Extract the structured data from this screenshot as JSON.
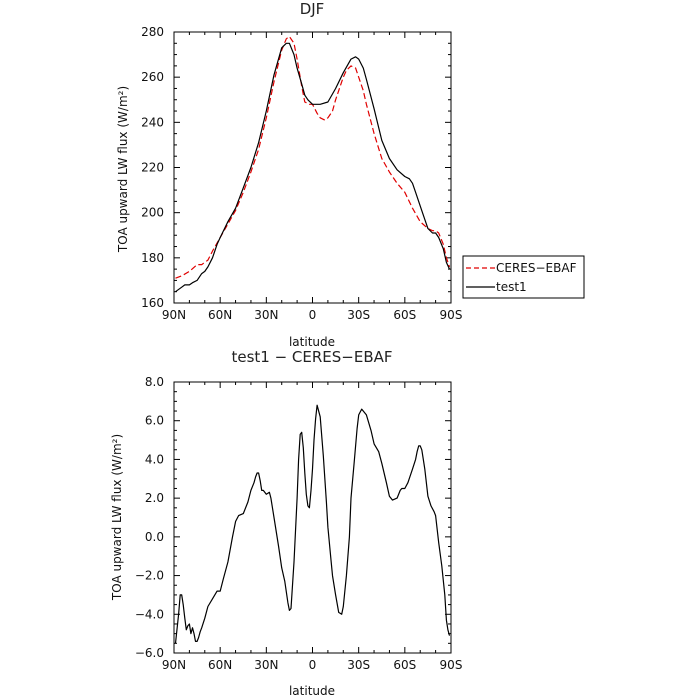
{
  "chart_data": [
    {
      "type": "line",
      "title": "DJF",
      "xlabel": "latitude",
      "ylabel": "TOA upward LW flux (W/m²)",
      "xlim": [
        90,
        -90
      ],
      "ylim": [
        160,
        280
      ],
      "x_ticks": [
        {
          "value": 90,
          "label": "90N"
        },
        {
          "value": 60,
          "label": "60N"
        },
        {
          "value": 30,
          "label": "30N"
        },
        {
          "value": 0,
          "label": "0"
        },
        {
          "value": -30,
          "label": "30S"
        },
        {
          "value": -60,
          "label": "60S"
        },
        {
          "value": -90,
          "label": "90S"
        }
      ],
      "y_ticks": [
        {
          "value": 160,
          "label": "160"
        },
        {
          "value": 180,
          "label": "180"
        },
        {
          "value": 200,
          "label": "200"
        },
        {
          "value": 220,
          "label": "220"
        },
        {
          "value": 240,
          "label": "240"
        },
        {
          "value": 260,
          "label": "260"
        },
        {
          "value": 280,
          "label": "280"
        }
      ],
      "legend": {
        "placement": "right",
        "entries": [
          "CERES−EBAF",
          "test1"
        ]
      },
      "series": [
        {
          "name": "CERES−EBAF",
          "color": "#e00000",
          "dash": true,
          "x": [
            89,
            85,
            80,
            75,
            72,
            68,
            65,
            60,
            55,
            50,
            45,
            40,
            35,
            30,
            25,
            20,
            17,
            15,
            12,
            10,
            7,
            5,
            2,
            0,
            -3,
            -5,
            -8,
            -10,
            -13,
            -15,
            -18,
            -20,
            -22,
            -25,
            -28,
            -30,
            -33,
            -35,
            -40,
            -45,
            -50,
            -55,
            -60,
            -65,
            -70,
            -75,
            -78,
            -80,
            -82,
            -85,
            -87,
            -89
          ],
          "y": [
            171,
            172,
            174,
            177,
            177,
            179,
            183,
            189,
            195,
            201,
            209,
            218,
            228,
            242,
            258,
            272,
            277,
            278,
            275,
            268,
            256,
            249,
            248,
            248,
            244,
            242,
            241,
            242,
            245,
            250,
            256,
            260,
            263,
            265,
            264,
            260,
            254,
            248,
            235,
            224,
            218,
            213,
            209,
            202,
            196,
            193,
            192,
            192,
            191,
            186,
            180,
            176
          ]
        },
        {
          "name": "test1",
          "color": "#000000",
          "dash": false,
          "x": [
            89,
            85,
            83,
            80,
            78,
            75,
            72,
            70,
            68,
            65,
            62,
            60,
            55,
            50,
            45,
            40,
            35,
            30,
            25,
            20,
            17,
            15,
            12,
            10,
            7,
            5,
            3,
            0,
            -5,
            -10,
            -15,
            -20,
            -25,
            -28,
            -30,
            -33,
            -35,
            -40,
            -45,
            -50,
            -55,
            -60,
            -63,
            -65,
            -67,
            -70,
            -73,
            -75,
            -78,
            -80,
            -82,
            -85,
            -87,
            -89
          ],
          "y": [
            165,
            167,
            168,
            168,
            169,
            170,
            173,
            174,
            176,
            180,
            186,
            189,
            196,
            202,
            211,
            220,
            231,
            245,
            261,
            273,
            275,
            275,
            270,
            264,
            257,
            252,
            250,
            248,
            248,
            249,
            255,
            262,
            268,
            269,
            268,
            264,
            259,
            246,
            232,
            224,
            219,
            216,
            215,
            213,
            209,
            203,
            197,
            193,
            191,
            191,
            189,
            184,
            178,
            175
          ]
        }
      ]
    },
    {
      "type": "line",
      "title": "test1 − CERES−EBAF",
      "xlabel": "latitude",
      "ylabel": "TOA upward LW flux (W/m²)",
      "xlim": [
        90,
        -90
      ],
      "ylim": [
        -6,
        8
      ],
      "x_ticks": [
        {
          "value": 90,
          "label": "90N"
        },
        {
          "value": 60,
          "label": "60N"
        },
        {
          "value": 30,
          "label": "30N"
        },
        {
          "value": 0,
          "label": "0"
        },
        {
          "value": -30,
          "label": "30S"
        },
        {
          "value": -60,
          "label": "60S"
        },
        {
          "value": -90,
          "label": "90S"
        }
      ],
      "y_ticks": [
        {
          "value": -6,
          "label": "−6.0"
        },
        {
          "value": -4,
          "label": "−4.0"
        },
        {
          "value": -2,
          "label": "−2.0"
        },
        {
          "value": 0,
          "label": "0.0"
        },
        {
          "value": 2,
          "label": "2.0"
        },
        {
          "value": 4,
          "label": "4.0"
        },
        {
          "value": 6,
          "label": "6.0"
        },
        {
          "value": 8,
          "label": "8.0"
        }
      ],
      "series": [
        {
          "color": "#000000",
          "dash": false,
          "x": [
            89,
            87,
            86,
            85,
            84,
            83,
            82,
            81,
            80,
            79,
            78,
            77,
            76,
            75,
            74,
            73,
            72,
            70,
            68,
            65,
            62,
            60,
            58,
            55,
            52,
            50,
            48,
            45,
            42,
            40,
            38,
            37,
            36,
            35,
            34,
            33,
            32,
            30,
            28,
            27,
            25,
            22,
            20,
            18,
            16,
            15,
            14,
            12,
            10,
            9,
            8,
            7,
            6,
            5,
            4,
            3,
            2,
            1,
            0,
            -1,
            -2,
            -3,
            -5,
            -7,
            -9,
            -10,
            -12,
            -13,
            -15,
            -17,
            -19,
            -20,
            -22,
            -24,
            -25,
            -27,
            -29,
            -30,
            -32,
            -35,
            -38,
            -40,
            -43,
            -45,
            -48,
            -50,
            -52,
            -55,
            -57,
            -58,
            -60,
            -62,
            -65,
            -67,
            -68,
            -69,
            -70,
            -71,
            -72,
            -73,
            -75,
            -77,
            -79,
            -80,
            -82,
            -84,
            -86,
            -87,
            -88,
            -89
          ],
          "y": [
            -5.5,
            -4.0,
            -3.0,
            -3.0,
            -3.5,
            -4.2,
            -4.8,
            -4.6,
            -4.5,
            -5.0,
            -4.7,
            -5.0,
            -5.4,
            -5.4,
            -5.2,
            -4.9,
            -4.7,
            -4.2,
            -3.6,
            -3.2,
            -2.8,
            -2.8,
            -2.2,
            -1.3,
            0.0,
            0.8,
            1.1,
            1.2,
            1.8,
            2.4,
            2.8,
            3.1,
            3.3,
            3.3,
            2.9,
            2.4,
            2.4,
            2.2,
            2.3,
            2.0,
            1.0,
            -0.5,
            -1.6,
            -2.3,
            -3.4,
            -3.8,
            -3.7,
            -1.3,
            2.0,
            4.0,
            5.3,
            5.4,
            4.6,
            3.3,
            2.2,
            1.6,
            1.5,
            2.4,
            3.5,
            5.0,
            6.1,
            6.8,
            6.2,
            4.2,
            1.8,
            0.5,
            -1.2,
            -2.0,
            -3.0,
            -3.9,
            -4.0,
            -3.6,
            -2.0,
            0.0,
            2.0,
            3.8,
            5.6,
            6.3,
            6.6,
            6.3,
            5.5,
            4.8,
            4.4,
            3.8,
            2.8,
            2.1,
            1.9,
            2.0,
            2.4,
            2.5,
            2.5,
            2.8,
            3.5,
            4.0,
            4.4,
            4.7,
            4.7,
            4.5,
            4.0,
            3.5,
            2.1,
            1.6,
            1.3,
            1.1,
            -0.3,
            -1.5,
            -3.0,
            -4.3,
            -4.8,
            -5.1
          ]
        }
      ]
    }
  ]
}
